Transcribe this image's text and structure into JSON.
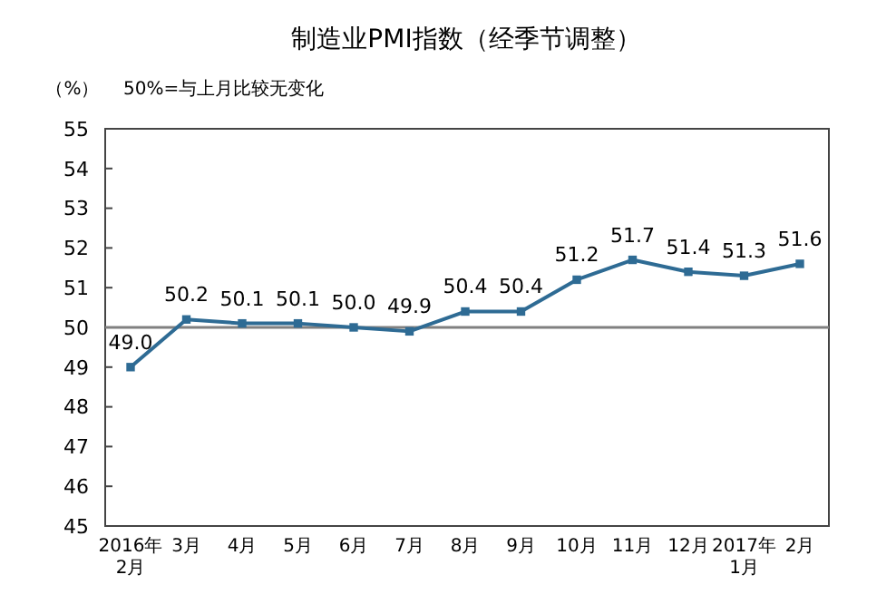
{
  "chart_data": {
    "type": "line",
    "title": "制造业PMI指数（经季节调整）",
    "ylabel": "（%）",
    "annotations": [
      "50%=与上月比较无变化"
    ],
    "categories": [
      "2016年\n2月",
      "3月",
      "4月",
      "5月",
      "6月",
      "7月",
      "8月",
      "9月",
      "10月",
      "11月",
      "12月",
      "2017年\n1月",
      "2月"
    ],
    "series": [
      {
        "color": "#2e6b94",
        "values": [
          49.0,
          50.2,
          50.1,
          50.1,
          50.0,
          49.9,
          50.4,
          50.4,
          51.2,
          51.7,
          51.4,
          51.3,
          51.6
        ],
        "value_labels": [
          "49.0",
          "50.2",
          "50.1",
          "50.1",
          "50.0",
          "49.9",
          "50.4",
          "50.4",
          "51.2",
          "51.7",
          "51.4",
          "51.3",
          "51.6"
        ]
      }
    ],
    "ylim": [
      45,
      55
    ],
    "yticks": [
      45,
      46,
      47,
      48,
      49,
      50,
      51,
      52,
      53,
      54,
      55
    ],
    "ref_lines": [
      {
        "axis": "y",
        "value": 50,
        "color": "#808080"
      }
    ],
    "marker": "square",
    "grid": false
  }
}
